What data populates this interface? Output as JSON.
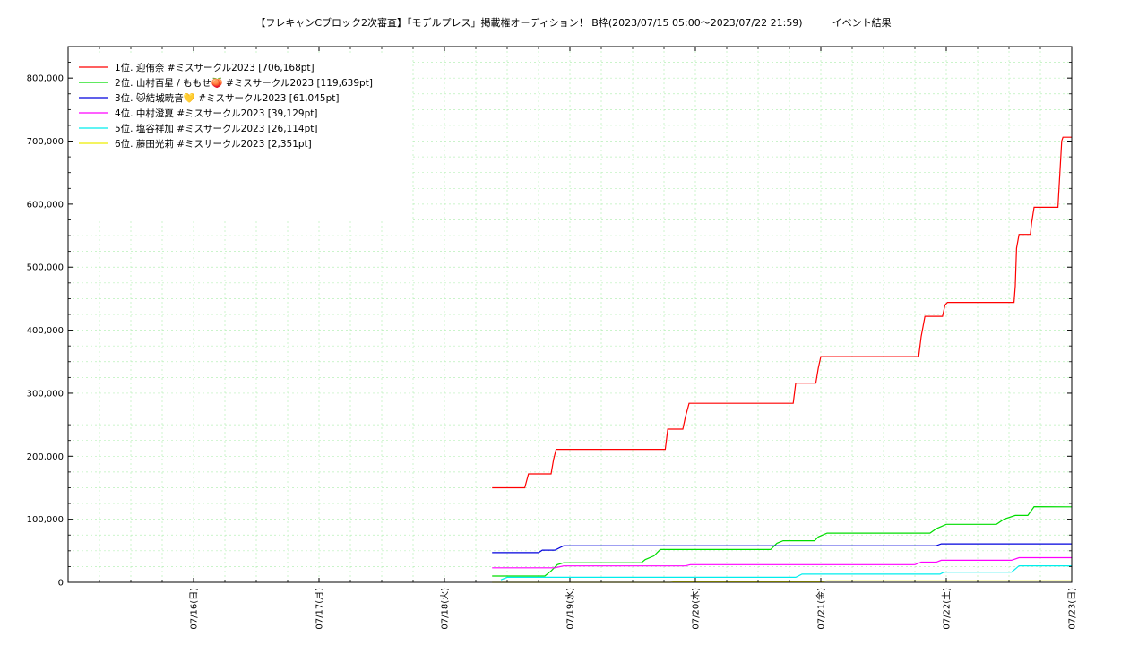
{
  "chart_data": {
    "type": "line",
    "title": "【フレキャンCブロック2次審査】「モデルプレス」掲載権オーディション！ B枠(2023/07/15 05:00〜2023/07/22 21:59)　　　イベント結果",
    "xlabel": "",
    "ylabel": "",
    "x_ticks": [
      "07/16(日)",
      "07/17(月)",
      "07/18(火)",
      "07/19(水)",
      "07/20(木)",
      "07/21(金)",
      "07/22(土)",
      "07/23(日)"
    ],
    "xlim_days": [
      15.0,
      23.0
    ],
    "ylim": [
      0,
      850000
    ],
    "y_ticks": [
      0,
      100000,
      200000,
      300000,
      400000,
      500000,
      600000,
      700000,
      800000
    ],
    "y_tick_labels": [
      "0",
      "100,000",
      "200,000",
      "300,000",
      "400,000",
      "500,000",
      "600,000",
      "700,000",
      "800,000"
    ],
    "grid": true,
    "legend_position": "top-left",
    "series": [
      {
        "name": "1位. 迎侑奈 #ミスサークル2023 [706,168pt]",
        "color": "#ff0000",
        "points": [
          [
            18.38,
            150000
          ],
          [
            18.64,
            150000
          ],
          [
            18.67,
            172000
          ],
          [
            18.85,
            172000
          ],
          [
            18.87,
            195000
          ],
          [
            18.89,
            211000
          ],
          [
            19.76,
            211000
          ],
          [
            19.78,
            243000
          ],
          [
            19.9,
            243000
          ],
          [
            19.92,
            262000
          ],
          [
            19.95,
            284000
          ],
          [
            20.78,
            284000
          ],
          [
            20.8,
            316000
          ],
          [
            20.96,
            316000
          ],
          [
            20.98,
            340000
          ],
          [
            21.0,
            358000
          ],
          [
            21.78,
            358000
          ],
          [
            21.8,
            390000
          ],
          [
            21.83,
            422000
          ],
          [
            21.97,
            422000
          ],
          [
            21.99,
            440000
          ],
          [
            22.01,
            444000
          ],
          [
            22.54,
            444000
          ],
          [
            22.55,
            470000
          ],
          [
            22.56,
            530000
          ],
          [
            22.58,
            552000
          ],
          [
            22.67,
            552000
          ],
          [
            22.68,
            570000
          ],
          [
            22.7,
            595000
          ],
          [
            22.89,
            595000
          ],
          [
            22.9,
            630000
          ],
          [
            22.91,
            665000
          ],
          [
            22.92,
            700000
          ],
          [
            22.93,
            706168
          ],
          [
            23.0,
            706168
          ]
        ]
      },
      {
        "name": "2位. 山村百星 / ももせ🍑 #ミスサークル2023 [119,639pt]",
        "color": "#00dd00",
        "points": [
          [
            18.38,
            10000
          ],
          [
            18.8,
            10000
          ],
          [
            18.85,
            18000
          ],
          [
            18.9,
            28000
          ],
          [
            18.95,
            31000
          ],
          [
            19.57,
            31000
          ],
          [
            19.6,
            36000
          ],
          [
            19.67,
            42000
          ],
          [
            19.72,
            52000
          ],
          [
            20.6,
            52000
          ],
          [
            20.65,
            62000
          ],
          [
            20.7,
            66000
          ],
          [
            20.95,
            66000
          ],
          [
            20.98,
            72000
          ],
          [
            21.05,
            78000
          ],
          [
            21.87,
            78000
          ],
          [
            21.92,
            85000
          ],
          [
            22.0,
            92000
          ],
          [
            22.4,
            92000
          ],
          [
            22.46,
            100000
          ],
          [
            22.55,
            106000
          ],
          [
            22.65,
            106000
          ],
          [
            22.7,
            120000
          ],
          [
            23.0,
            119639
          ]
        ]
      },
      {
        "name": "3位. 🐱結城暁音💛 #ミスサークル2023 [61,045pt]",
        "color": "#0000dd",
        "points": [
          [
            18.38,
            47000
          ],
          [
            18.75,
            47000
          ],
          [
            18.78,
            51000
          ],
          [
            18.88,
            51000
          ],
          [
            18.95,
            58000
          ],
          [
            21.92,
            58000
          ],
          [
            21.96,
            61000
          ],
          [
            23.0,
            61045
          ]
        ]
      },
      {
        "name": "4位. 中村澄夏 #ミスサークル2023 [39,129pt]",
        "color": "#ff00ff",
        "points": [
          [
            18.38,
            23000
          ],
          [
            18.88,
            23000
          ],
          [
            18.95,
            26000
          ],
          [
            19.92,
            26000
          ],
          [
            19.96,
            28000
          ],
          [
            21.75,
            28000
          ],
          [
            21.8,
            32000
          ],
          [
            21.92,
            32000
          ],
          [
            21.96,
            35000
          ],
          [
            22.52,
            35000
          ],
          [
            22.58,
            39129
          ],
          [
            23.0,
            39129
          ]
        ]
      },
      {
        "name": "5位. 塩谷祥加 #ミスサークル2023 [26,114pt]",
        "color": "#00eeee",
        "points": [
          [
            18.45,
            4000
          ],
          [
            18.5,
            8000
          ],
          [
            20.8,
            8000
          ],
          [
            20.85,
            13000
          ],
          [
            21.95,
            13000
          ],
          [
            21.98,
            16000
          ],
          [
            22.52,
            16000
          ],
          [
            22.58,
            26114
          ],
          [
            23.0,
            26114
          ]
        ]
      },
      {
        "name": "6位. 藤田光莉 #ミスサークル2023 [2,351pt]",
        "color": "#eeee00",
        "points": [
          [
            18.38,
            0
          ],
          [
            19.8,
            0
          ],
          [
            19.85,
            1200
          ],
          [
            21.0,
            1200
          ],
          [
            21.05,
            2351
          ],
          [
            23.0,
            2351
          ]
        ]
      }
    ]
  }
}
